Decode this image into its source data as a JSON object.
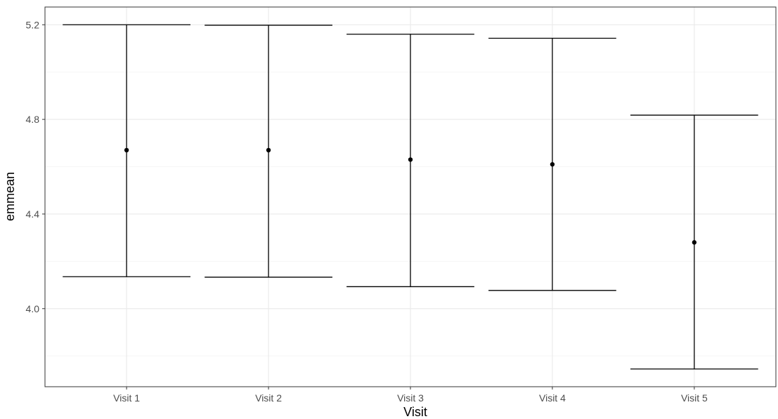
{
  "chart_data": {
    "type": "errorbar",
    "xlabel": "Visit",
    "ylabel": "emmean",
    "categories": [
      "Visit 1",
      "Visit 2",
      "Visit 3",
      "Visit 4",
      "Visit 5"
    ],
    "emmean": [
      4.67,
      4.67,
      4.63,
      4.61,
      4.28
    ],
    "lower": [
      4.135,
      4.133,
      4.093,
      4.077,
      3.745
    ],
    "upper": [
      5.2,
      5.198,
      5.16,
      5.143,
      4.818
    ],
    "ylim": [
      3.67,
      5.275
    ],
    "yticks": [
      4.0,
      4.4,
      4.8,
      5.2
    ],
    "ytick_labels": [
      "4.0",
      "4.4",
      "4.8",
      "5.2"
    ],
    "grid": true,
    "colors": {
      "panel_border": "#333333",
      "grid_major": "#ebebeb",
      "grid_minor": "#f5f5f5",
      "mark": "#000000"
    }
  }
}
